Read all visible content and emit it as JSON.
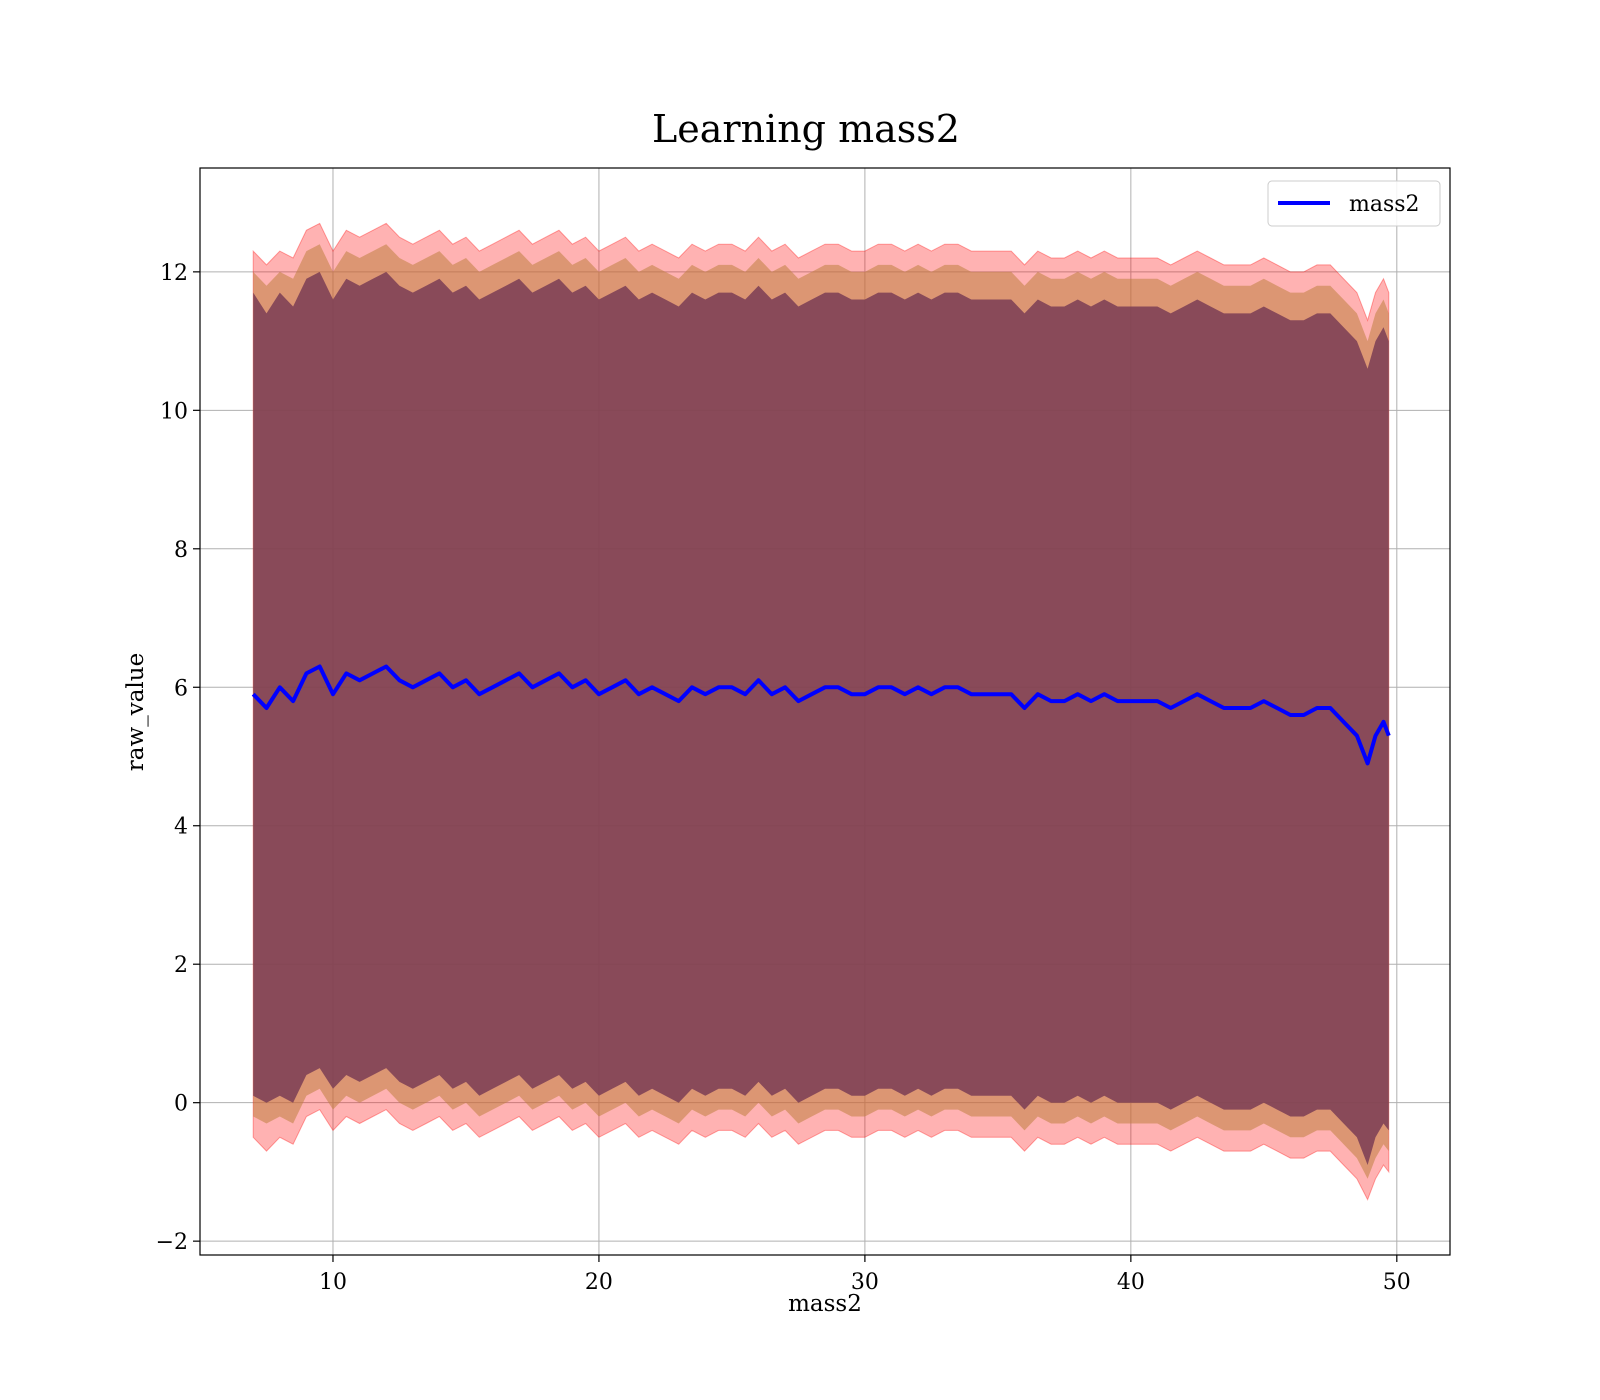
{
  "chart_data": {
    "type": "line",
    "title": "Learning mass2",
    "xlabel": "mass2",
    "ylabel": "raw_value",
    "xlim": [
      5,
      52
    ],
    "ylim": [
      -2.2,
      13.5
    ],
    "xticks": [
      10,
      20,
      30,
      40,
      50
    ],
    "yticks": [
      -2,
      0,
      2,
      4,
      6,
      8,
      10,
      12
    ],
    "grid": true,
    "legend": {
      "placement": "top-right",
      "entries": [
        "mass2"
      ]
    },
    "colors": {
      "line": "#0000ff",
      "band_outer": "#ff0000",
      "band_middle": "#c08040",
      "band_inner": "#7a3d55",
      "grid": "#b0b0b0"
    },
    "series": [
      {
        "name": "mass2",
        "x": [
          7.0,
          7.5,
          8.0,
          8.5,
          9.0,
          9.5,
          10.0,
          10.5,
          11.0,
          11.5,
          12.0,
          12.5,
          13.0,
          13.5,
          14.0,
          14.5,
          15.0,
          15.5,
          16.0,
          16.5,
          17.0,
          17.5,
          18.0,
          18.5,
          19.0,
          19.5,
          20.0,
          20.5,
          21.0,
          21.5,
          22.0,
          22.5,
          23.0,
          23.5,
          24.0,
          24.5,
          25.0,
          25.5,
          26.0,
          26.5,
          27.0,
          27.5,
          28.0,
          28.5,
          29.0,
          29.5,
          30.0,
          30.5,
          31.0,
          31.5,
          32.0,
          32.5,
          33.0,
          33.5,
          34.0,
          34.5,
          35.0,
          35.5,
          36.0,
          36.5,
          37.0,
          37.5,
          38.0,
          38.5,
          39.0,
          39.5,
          40.0,
          40.5,
          41.0,
          41.5,
          42.0,
          42.5,
          43.0,
          43.5,
          44.0,
          44.5,
          45.0,
          45.5,
          46.0,
          46.5,
          47.0,
          47.5,
          48.0,
          48.5,
          48.9,
          49.2,
          49.5,
          49.7
        ],
        "y": [
          5.9,
          5.7,
          6.0,
          5.8,
          6.2,
          6.3,
          5.9,
          6.2,
          6.1,
          6.2,
          6.3,
          6.1,
          6.0,
          6.1,
          6.2,
          6.0,
          6.1,
          5.9,
          6.0,
          6.1,
          6.2,
          6.0,
          6.1,
          6.2,
          6.0,
          6.1,
          5.9,
          6.0,
          6.1,
          5.9,
          6.0,
          5.9,
          5.8,
          6.0,
          5.9,
          6.0,
          6.0,
          5.9,
          6.1,
          5.9,
          6.0,
          5.8,
          5.9,
          6.0,
          6.0,
          5.9,
          5.9,
          6.0,
          6.0,
          5.9,
          6.0,
          5.9,
          6.0,
          6.0,
          5.9,
          5.9,
          5.9,
          5.9,
          5.7,
          5.9,
          5.8,
          5.8,
          5.9,
          5.8,
          5.9,
          5.8,
          5.8,
          5.8,
          5.8,
          5.7,
          5.8,
          5.9,
          5.8,
          5.7,
          5.7,
          5.7,
          5.8,
          5.7,
          5.6,
          5.6,
          5.7,
          5.7,
          5.5,
          5.3,
          4.9,
          5.3,
          5.5,
          5.3
        ],
        "band_outer_low": [
          -0.5,
          -0.7,
          -0.5,
          -0.6,
          -0.2,
          -0.1,
          -0.4,
          -0.2,
          -0.3,
          -0.2,
          -0.1,
          -0.3,
          -0.4,
          -0.3,
          -0.2,
          -0.4,
          -0.3,
          -0.5,
          -0.4,
          -0.3,
          -0.2,
          -0.4,
          -0.3,
          -0.2,
          -0.4,
          -0.3,
          -0.5,
          -0.4,
          -0.3,
          -0.5,
          -0.4,
          -0.5,
          -0.6,
          -0.4,
          -0.5,
          -0.4,
          -0.4,
          -0.5,
          -0.3,
          -0.5,
          -0.4,
          -0.6,
          -0.5,
          -0.4,
          -0.4,
          -0.5,
          -0.5,
          -0.4,
          -0.4,
          -0.5,
          -0.4,
          -0.5,
          -0.4,
          -0.4,
          -0.5,
          -0.5,
          -0.5,
          -0.5,
          -0.7,
          -0.5,
          -0.6,
          -0.6,
          -0.5,
          -0.6,
          -0.5,
          -0.6,
          -0.6,
          -0.6,
          -0.6,
          -0.7,
          -0.6,
          -0.5,
          -0.6,
          -0.7,
          -0.7,
          -0.7,
          -0.6,
          -0.7,
          -0.8,
          -0.8,
          -0.7,
          -0.7,
          -0.9,
          -1.1,
          -1.4,
          -1.1,
          -0.9,
          -1.0
        ],
        "band_middle_low": [
          -0.2,
          -0.3,
          -0.2,
          -0.3,
          0.1,
          0.2,
          -0.1,
          0.1,
          0.0,
          0.1,
          0.2,
          0.0,
          -0.1,
          0.0,
          0.1,
          -0.1,
          0.0,
          -0.2,
          -0.1,
          0.0,
          0.1,
          -0.1,
          0.0,
          0.1,
          -0.1,
          0.0,
          -0.2,
          -0.1,
          0.0,
          -0.2,
          -0.1,
          -0.2,
          -0.3,
          -0.1,
          -0.2,
          -0.1,
          -0.1,
          -0.2,
          0.0,
          -0.2,
          -0.1,
          -0.3,
          -0.2,
          -0.1,
          -0.1,
          -0.2,
          -0.2,
          -0.1,
          -0.1,
          -0.2,
          -0.1,
          -0.2,
          -0.1,
          -0.1,
          -0.2,
          -0.2,
          -0.2,
          -0.2,
          -0.4,
          -0.2,
          -0.3,
          -0.3,
          -0.2,
          -0.3,
          -0.2,
          -0.3,
          -0.3,
          -0.3,
          -0.3,
          -0.4,
          -0.3,
          -0.2,
          -0.3,
          -0.4,
          -0.4,
          -0.4,
          -0.3,
          -0.4,
          -0.5,
          -0.5,
          -0.4,
          -0.4,
          -0.6,
          -0.8,
          -1.1,
          -0.8,
          -0.6,
          -0.7
        ],
        "band_inner_low": [
          0.1,
          0.0,
          0.1,
          0.0,
          0.4,
          0.5,
          0.2,
          0.4,
          0.3,
          0.4,
          0.5,
          0.3,
          0.2,
          0.3,
          0.4,
          0.2,
          0.3,
          0.1,
          0.2,
          0.3,
          0.4,
          0.2,
          0.3,
          0.4,
          0.2,
          0.3,
          0.1,
          0.2,
          0.3,
          0.1,
          0.2,
          0.1,
          0.0,
          0.2,
          0.1,
          0.2,
          0.2,
          0.1,
          0.3,
          0.1,
          0.2,
          0.0,
          0.1,
          0.2,
          0.2,
          0.1,
          0.1,
          0.2,
          0.2,
          0.1,
          0.2,
          0.1,
          0.2,
          0.2,
          0.1,
          0.1,
          0.1,
          0.1,
          -0.1,
          0.1,
          0.0,
          0.0,
          0.1,
          0.0,
          0.1,
          0.0,
          0.0,
          0.0,
          0.0,
          -0.1,
          0.0,
          0.1,
          0.0,
          -0.1,
          -0.1,
          -0.1,
          0.0,
          -0.1,
          -0.2,
          -0.2,
          -0.1,
          -0.1,
          -0.3,
          -0.5,
          -0.9,
          -0.5,
          -0.3,
          -0.4
        ],
        "band_inner_high": [
          11.7,
          11.4,
          11.7,
          11.5,
          11.9,
          12.0,
          11.6,
          11.9,
          11.8,
          11.9,
          12.0,
          11.8,
          11.7,
          11.8,
          11.9,
          11.7,
          11.8,
          11.6,
          11.7,
          11.8,
          11.9,
          11.7,
          11.8,
          11.9,
          11.7,
          11.8,
          11.6,
          11.7,
          11.8,
          11.6,
          11.7,
          11.6,
          11.5,
          11.7,
          11.6,
          11.7,
          11.7,
          11.6,
          11.8,
          11.6,
          11.7,
          11.5,
          11.6,
          11.7,
          11.7,
          11.6,
          11.6,
          11.7,
          11.7,
          11.6,
          11.7,
          11.6,
          11.7,
          11.7,
          11.6,
          11.6,
          11.6,
          11.6,
          11.4,
          11.6,
          11.5,
          11.5,
          11.6,
          11.5,
          11.6,
          11.5,
          11.5,
          11.5,
          11.5,
          11.4,
          11.5,
          11.6,
          11.5,
          11.4,
          11.4,
          11.4,
          11.5,
          11.4,
          11.3,
          11.3,
          11.4,
          11.4,
          11.2,
          11.0,
          10.6,
          11.0,
          11.2,
          11.0
        ],
        "band_middle_high": [
          12.0,
          11.8,
          12.0,
          11.9,
          12.3,
          12.4,
          12.0,
          12.3,
          12.2,
          12.3,
          12.4,
          12.2,
          12.1,
          12.2,
          12.3,
          12.1,
          12.2,
          12.0,
          12.1,
          12.2,
          12.3,
          12.1,
          12.2,
          12.3,
          12.1,
          12.2,
          12.0,
          12.1,
          12.2,
          12.0,
          12.1,
          12.0,
          11.9,
          12.1,
          12.0,
          12.1,
          12.1,
          12.0,
          12.2,
          12.0,
          12.1,
          11.9,
          12.0,
          12.1,
          12.1,
          12.0,
          12.0,
          12.1,
          12.1,
          12.0,
          12.1,
          12.0,
          12.1,
          12.1,
          12.0,
          12.0,
          12.0,
          12.0,
          11.8,
          12.0,
          11.9,
          11.9,
          12.0,
          11.9,
          12.0,
          11.9,
          11.9,
          11.9,
          11.9,
          11.8,
          11.9,
          12.0,
          11.9,
          11.8,
          11.8,
          11.8,
          11.9,
          11.8,
          11.7,
          11.7,
          11.8,
          11.8,
          11.6,
          11.4,
          11.0,
          11.4,
          11.6,
          11.4
        ],
        "band_outer_high": [
          12.3,
          12.1,
          12.3,
          12.2,
          12.6,
          12.7,
          12.3,
          12.6,
          12.5,
          12.6,
          12.7,
          12.5,
          12.4,
          12.5,
          12.6,
          12.4,
          12.5,
          12.3,
          12.4,
          12.5,
          12.6,
          12.4,
          12.5,
          12.6,
          12.4,
          12.5,
          12.3,
          12.4,
          12.5,
          12.3,
          12.4,
          12.3,
          12.2,
          12.4,
          12.3,
          12.4,
          12.4,
          12.3,
          12.5,
          12.3,
          12.4,
          12.2,
          12.3,
          12.4,
          12.4,
          12.3,
          12.3,
          12.4,
          12.4,
          12.3,
          12.4,
          12.3,
          12.4,
          12.4,
          12.3,
          12.3,
          12.3,
          12.3,
          12.1,
          12.3,
          12.2,
          12.2,
          12.3,
          12.2,
          12.3,
          12.2,
          12.2,
          12.2,
          12.2,
          12.1,
          12.2,
          12.3,
          12.2,
          12.1,
          12.1,
          12.1,
          12.2,
          12.1,
          12.0,
          12.0,
          12.1,
          12.1,
          11.9,
          11.7,
          11.3,
          11.7,
          11.9,
          11.7
        ]
      }
    ]
  }
}
